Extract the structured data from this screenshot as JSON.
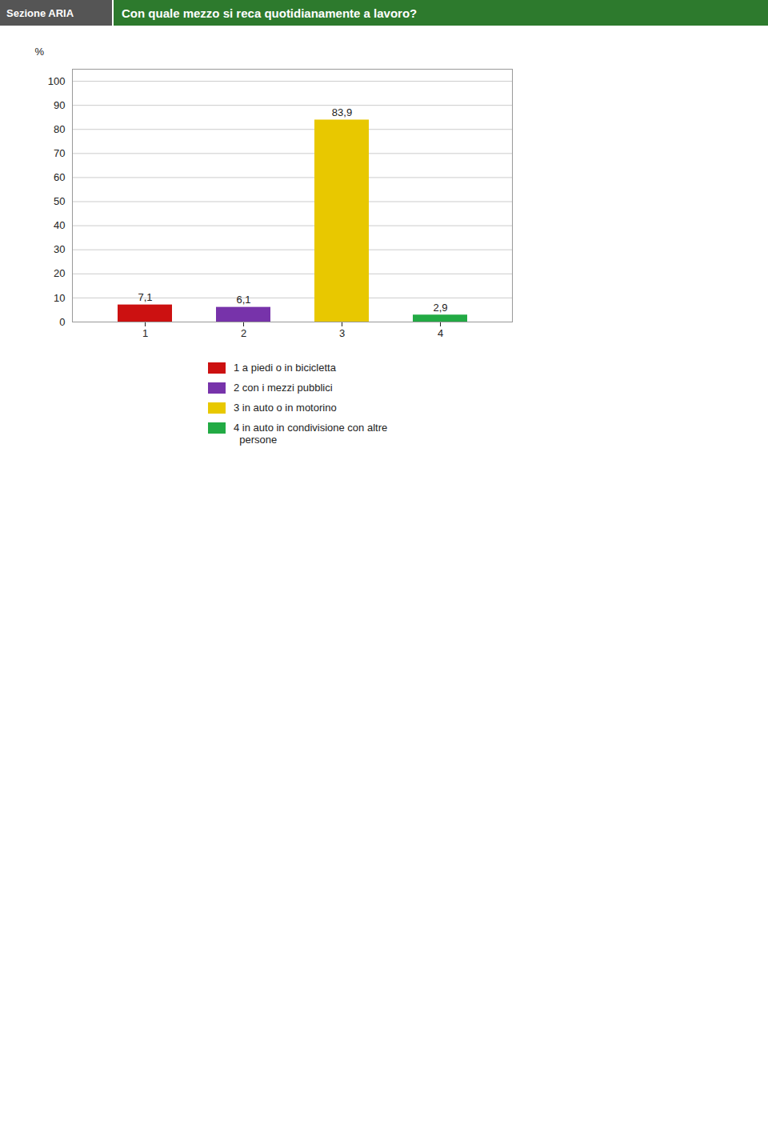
{
  "chart_data": {
    "type": "bar",
    "title": "Con quale mezzo si reca quotidianamente a lavoro?",
    "subtitle": "Sezione ARIA",
    "categories": [
      "1",
      "2",
      "3",
      "4"
    ],
    "series": [
      {
        "name": "1 a piedi o in bicicletta",
        "color": "#cc1111",
        "values": [
          7.1,
          null,
          null,
          null
        ],
        "value_labels": [
          "7,1",
          null,
          null,
          null
        ]
      },
      {
        "name": "2 con i mezzi pubblici",
        "color": "#7733aa",
        "values": [
          null,
          6.1,
          null,
          null
        ],
        "value_labels": [
          null,
          "6,1",
          null,
          null
        ]
      },
      {
        "name": "3 in auto o in motorino",
        "color": "#e8c800",
        "values": [
          null,
          null,
          83.9,
          null
        ],
        "value_labels": [
          null,
          null,
          "83,9",
          null
        ]
      },
      {
        "name": "4 in auto in condivisione con altre\n  persone",
        "color": "#22aa44",
        "values": [
          null,
          null,
          null,
          2.9
        ],
        "value_labels": [
          null,
          null,
          null,
          "2,9"
        ]
      }
    ],
    "ylabel": "%",
    "ylim": [
      0,
      105
    ],
    "yticks": [
      0,
      10,
      20,
      30,
      40,
      50,
      60,
      70,
      80,
      90,
      100
    ],
    "grid": true,
    "data_labels": true,
    "legend": "bottom"
  }
}
